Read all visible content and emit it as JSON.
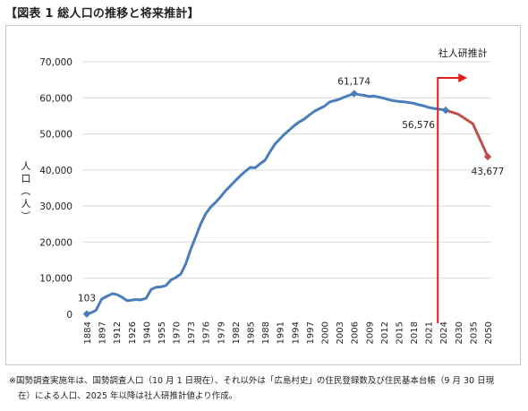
{
  "title": "【図表 1 総人口の推移と将来推計】",
  "note_line1": "※国勢調査実施年は、国勢調査人口（10 月 1 日現在）、それ以外は「広島村史」の住民登録数及び住民基本台帳（9 月 30 日現",
  "note_line2": "在）による人口、2025 年以降は社人研推計値より作成。",
  "colors": {
    "line": "#4a7ebb",
    "projection": "#c0504d",
    "arrow": "#e02020",
    "grid": "#d9d9d9",
    "text": "#222222"
  },
  "chart_data": {
    "type": "line",
    "title": "",
    "xlabel": "",
    "ylabel": "人口（人）",
    "ylim": [
      0,
      70000
    ],
    "yticks": [
      0,
      10000,
      20000,
      30000,
      40000,
      50000,
      60000,
      70000
    ],
    "ytick_labels": [
      "0",
      "10,000",
      "20,000",
      "30,000",
      "40,000",
      "50,000",
      "60,000",
      "70,000"
    ],
    "grid": true,
    "x_tick_labels": [
      "1884",
      "1897",
      "1912",
      "1926",
      "1940",
      "1955",
      "1970",
      "1973",
      "1976",
      "1979",
      "1982",
      "1985",
      "1988",
      "1991",
      "1994",
      "1997",
      "2000",
      "2003",
      "2006",
      "2009",
      "2012",
      "2015",
      "2018",
      "2021",
      "2024",
      "2030",
      "2035",
      "2050"
    ],
    "series": [
      {
        "x": [
          1884,
          1888,
          1892,
          1897,
          1903,
          1908,
          1912,
          1917,
          1922,
          1926,
          1930,
          1935,
          1940,
          1945,
          1950,
          1955,
          1960,
          1965,
          1970,
          1971,
          1972,
          1973,
          1974,
          1975,
          1976,
          1977,
          1978,
          1979,
          1980,
          1981,
          1982,
          1983,
          1984,
          1985,
          1986,
          1987,
          1988,
          1989,
          1990,
          1991,
          1992,
          1993,
          1994,
          1995,
          1996,
          1997,
          1998,
          1999,
          2000,
          2001,
          2002,
          2003,
          2004,
          2005,
          2006,
          2007,
          2008,
          2009,
          2010,
          2011,
          2012,
          2013,
          2014,
          2015,
          2016,
          2017,
          2018,
          2019,
          2020,
          2021,
          2022,
          2023,
          2024,
          2025
        ],
        "values": [
          103,
          450,
          1100,
          4200,
          5100,
          5700,
          5500,
          4800,
          3800,
          3900,
          4100,
          4000,
          4500,
          6900,
          7500,
          7600,
          8000,
          9500,
          10200,
          11200,
          14000,
          18000,
          21500,
          25000,
          27800,
          29700,
          31000,
          32500,
          34200,
          35600,
          37000,
          38400,
          39600,
          40700,
          40600,
          41700,
          42700,
          45000,
          47200,
          48600,
          50000,
          51200,
          52400,
          53400,
          54200,
          55300,
          56300,
          57000,
          57700,
          58800,
          59200,
          59600,
          60200,
          60700,
          61174,
          60900,
          60700,
          60400,
          60500,
          60200,
          59900,
          59500,
          59200,
          59000,
          58900,
          58700,
          58500,
          58100,
          57800,
          57400,
          57100,
          56900,
          56700,
          56576
        ]
      },
      {
        "name": "社人研推計",
        "x": [
          2025,
          2030,
          2035,
          2040,
          2045,
          2050
        ],
        "values": [
          56576,
          55500,
          52800,
          49800,
          46800,
          43677
        ]
      }
    ],
    "annotations": [
      {
        "text": "103",
        "x": 1884,
        "y": 103
      },
      {
        "text": "61,174",
        "x": 2006,
        "y": 61174
      },
      {
        "text": "56,576",
        "x": 2025,
        "y": 56576
      },
      {
        "text": "43,677",
        "x": 2050,
        "y": 43677
      }
    ],
    "projection_label": "社人研推計"
  }
}
